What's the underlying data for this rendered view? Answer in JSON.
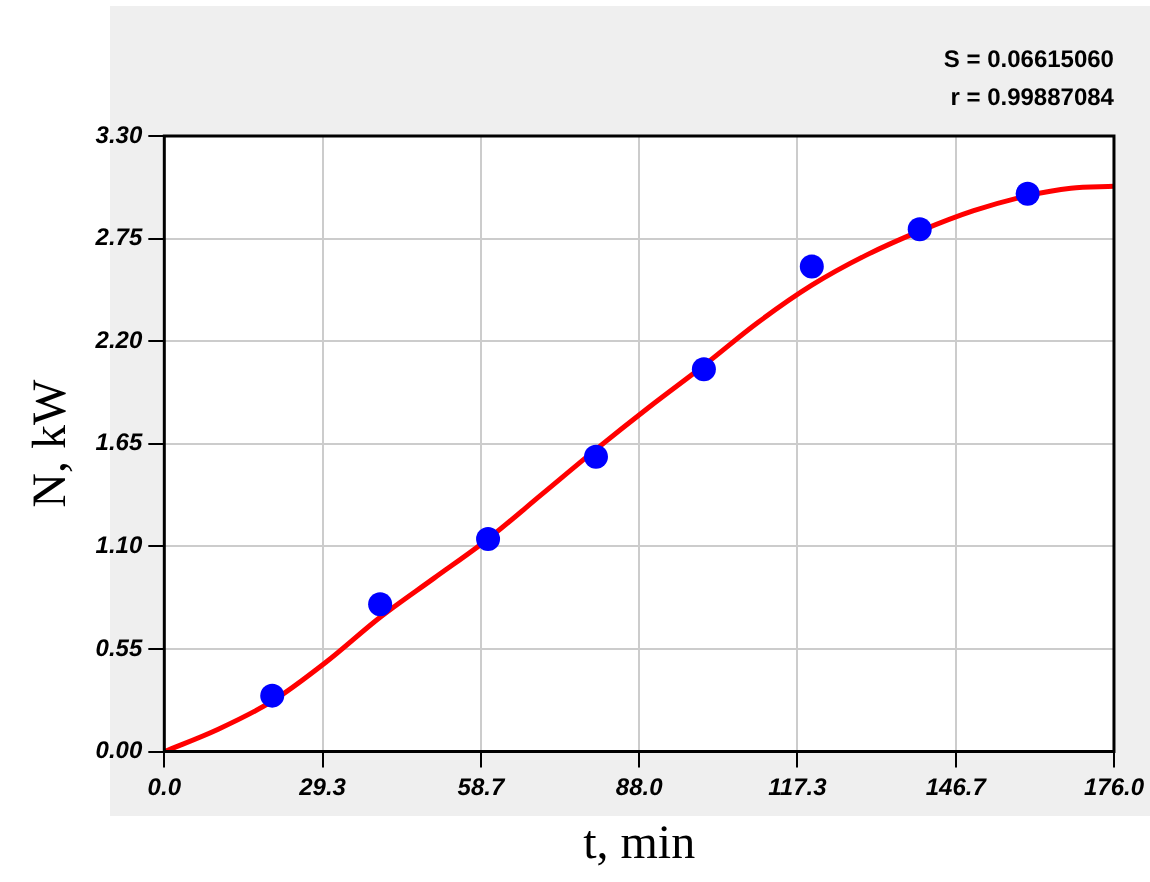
{
  "chart_data": {
    "type": "scatter",
    "xlabel": "t, min",
    "ylabel": "N, kW",
    "annotations": [
      "S = 0.06615060",
      "r = 0.99887084"
    ],
    "xlim": [
      0,
      176
    ],
    "xticks": [
      {
        "value": 0,
        "label": "0.0"
      },
      {
        "value": 29.33,
        "label": "29.3"
      },
      {
        "value": 58.67,
        "label": "58.7"
      },
      {
        "value": 88,
        "label": "88.0"
      },
      {
        "value": 117.33,
        "label": "117.3"
      },
      {
        "value": 146.67,
        "label": "146.7"
      },
      {
        "value": 176,
        "label": "176.0"
      }
    ],
    "ylim": [
      0,
      3.3
    ],
    "yticks": [
      {
        "value": 0,
        "label": "0.00"
      },
      {
        "value": 0.55,
        "label": "0.55"
      },
      {
        "value": 1.1,
        "label": "1.10"
      },
      {
        "value": 1.65,
        "label": "1.65"
      },
      {
        "value": 2.2,
        "label": "2.20"
      },
      {
        "value": 2.75,
        "label": "2.75"
      },
      {
        "value": 3.3,
        "label": "3.30"
      }
    ],
    "grid": true,
    "marker": "circle",
    "legend": false,
    "series": [
      {
        "color": "#0000ff",
        "x": [
          20,
          40,
          60,
          80,
          100,
          120,
          140,
          160
        ],
        "values": [
          0.3,
          0.79,
          1.14,
          1.58,
          2.05,
          2.6,
          2.8,
          2.99
        ]
      },
      {
        "type": "line",
        "color": "#ff0000",
        "marker": "none",
        "x": [
          0,
          10,
          20,
          30,
          40,
          50,
          60,
          70,
          80,
          90,
          100,
          110,
          120,
          130,
          140,
          150,
          160,
          168,
          176
        ],
        "values": [
          0,
          0.12,
          0.27,
          0.48,
          0.72,
          0.93,
          1.14,
          1.38,
          1.62,
          1.85,
          2.07,
          2.3,
          2.5,
          2.66,
          2.79,
          2.9,
          2.98,
          3.02,
          3.03
        ]
      }
    ]
  }
}
